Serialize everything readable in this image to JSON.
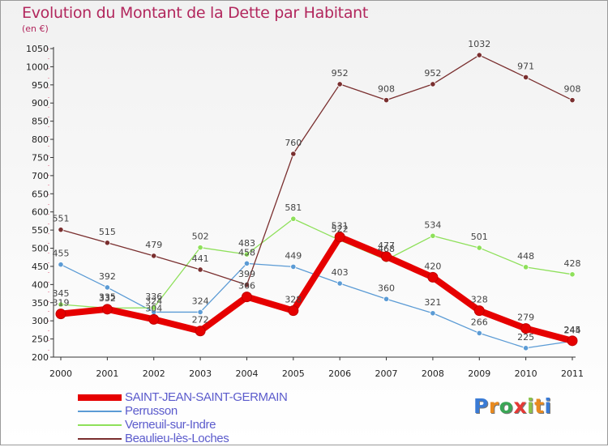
{
  "title": "Evolution du Montant de la Dette par Habitant",
  "unit": "(en €)",
  "logo": "Proxiti",
  "chart_data": {
    "type": "line",
    "title": "Evolution du Montant de la Dette par Habitant",
    "ylabel": "(en €)",
    "xlabel": "",
    "x": [
      "2000",
      "2001",
      "2002",
      "2003",
      "2004",
      "2005",
      "2006",
      "2007",
      "2008",
      "2009",
      "2010",
      "2011"
    ],
    "ylim": [
      200,
      1050
    ],
    "yticks": [
      200,
      250,
      300,
      350,
      400,
      450,
      500,
      550,
      600,
      650,
      700,
      750,
      800,
      850,
      900,
      950,
      1000,
      1050
    ],
    "grid": false,
    "legend_position": "bottom-left",
    "series": [
      {
        "name": "SAINT-JEAN-SAINT-GERMAIN",
        "color": "#e60000",
        "values": [
          319,
          332,
          304,
          272,
          366,
          328,
          531,
          477,
          420,
          328,
          279,
          245
        ]
      },
      {
        "name": "Perrusson",
        "color": "#5b9bd5",
        "values": [
          455,
          392,
          324,
          324,
          458,
          449,
          403,
          360,
          321,
          266,
          225,
          244
        ]
      },
      {
        "name": "Verneuil-sur-Indre",
        "color": "#8ee05a",
        "values": [
          345,
          335,
          336,
          502,
          483,
          581,
          522,
          468,
          534,
          501,
          448,
          428
        ]
      },
      {
        "name": "Beaulieu-lès-Loches",
        "color": "#7a2f2f",
        "values": [
          551,
          515,
          479,
          441,
          399,
          760,
          952,
          908,
          952,
          1032,
          971,
          908
        ]
      }
    ]
  }
}
